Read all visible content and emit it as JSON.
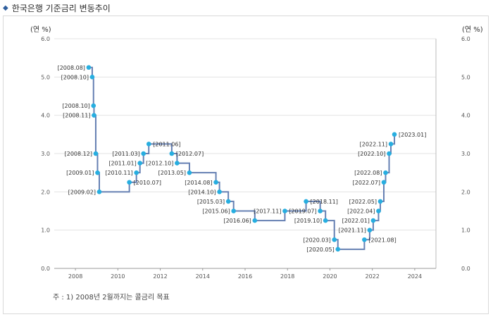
{
  "header": {
    "title": "한국은행 기준금리 변동추이"
  },
  "chart_data": {
    "type": "line",
    "line_shape": "step",
    "title": "한국은행 기준금리 변동추이",
    "ylabel_left": "(연 %)",
    "ylabel_right": "(연 %)",
    "xlim": [
      2007,
      2025
    ],
    "ylim": [
      0,
      6
    ],
    "x_ticks": [
      "2008",
      "2010",
      "2012",
      "2014",
      "2016",
      "2018",
      "2020",
      "2022",
      "2024"
    ],
    "y_ticks": [
      "0.0",
      "1.0",
      "2.0",
      "3.0",
      "4.0",
      "5.0",
      "6.0"
    ],
    "grid": "y",
    "colors": {
      "line": "#6680b3",
      "point": "#27aee0",
      "grid": "#e3e3e3"
    },
    "points": [
      {
        "label": "[2008.08]",
        "value": 5.25
      },
      {
        "label": "[2008.10]",
        "value": 5.0
      },
      {
        "label": "[2008.10]",
        "value": 4.25
      },
      {
        "label": "[2008.11]",
        "value": 4.0
      },
      {
        "label": "[2008.12]",
        "value": 3.0
      },
      {
        "label": "[2009.01]",
        "value": 2.5
      },
      {
        "label": "[2009.02]",
        "value": 2.0
      },
      {
        "label": "[2010.07]",
        "value": 2.25
      },
      {
        "label": "[2010.11]",
        "value": 2.5
      },
      {
        "label": "[2011.01]",
        "value": 2.75
      },
      {
        "label": "[2011.03]",
        "value": 3.0
      },
      {
        "label": "[2011.06]",
        "value": 3.25
      },
      {
        "label": "[2012.07]",
        "value": 3.0
      },
      {
        "label": "[2012.10]",
        "value": 2.75
      },
      {
        "label": "[2013.05]",
        "value": 2.5
      },
      {
        "label": "[2014.08]",
        "value": 2.25
      },
      {
        "label": "[2014.10]",
        "value": 2.0
      },
      {
        "label": "[2015.03]",
        "value": 1.75
      },
      {
        "label": "[2015.06]",
        "value": 1.5
      },
      {
        "label": "[2016.06]",
        "value": 1.25
      },
      {
        "label": "[2017.11]",
        "value": 1.5
      },
      {
        "label": "[2018.11]",
        "value": 1.75
      },
      {
        "label": "[2019.07]",
        "value": 1.5
      },
      {
        "label": "[2019.10]",
        "value": 1.25
      },
      {
        "label": "[2020.03]",
        "value": 0.75
      },
      {
        "label": "[2020.05]",
        "value": 0.5
      },
      {
        "label": "[2021.08]",
        "value": 0.75
      },
      {
        "label": "[2021.11]",
        "value": 1.0
      },
      {
        "label": "[2022.01]",
        "value": 1.25
      },
      {
        "label": "[2022.04]",
        "value": 1.5
      },
      {
        "label": "[2022.05]",
        "value": 1.75
      },
      {
        "label": "[2022.07]",
        "value": 2.25
      },
      {
        "label": "[2022.08]",
        "value": 2.5
      },
      {
        "label": "[2022.10]",
        "value": 3.0
      },
      {
        "label": "[2022.11]",
        "value": 3.25
      },
      {
        "label": "[2023.01]",
        "value": 3.5
      }
    ],
    "footnote": "주 : 1) 2008년 2월까지는 콜금리 목표"
  }
}
